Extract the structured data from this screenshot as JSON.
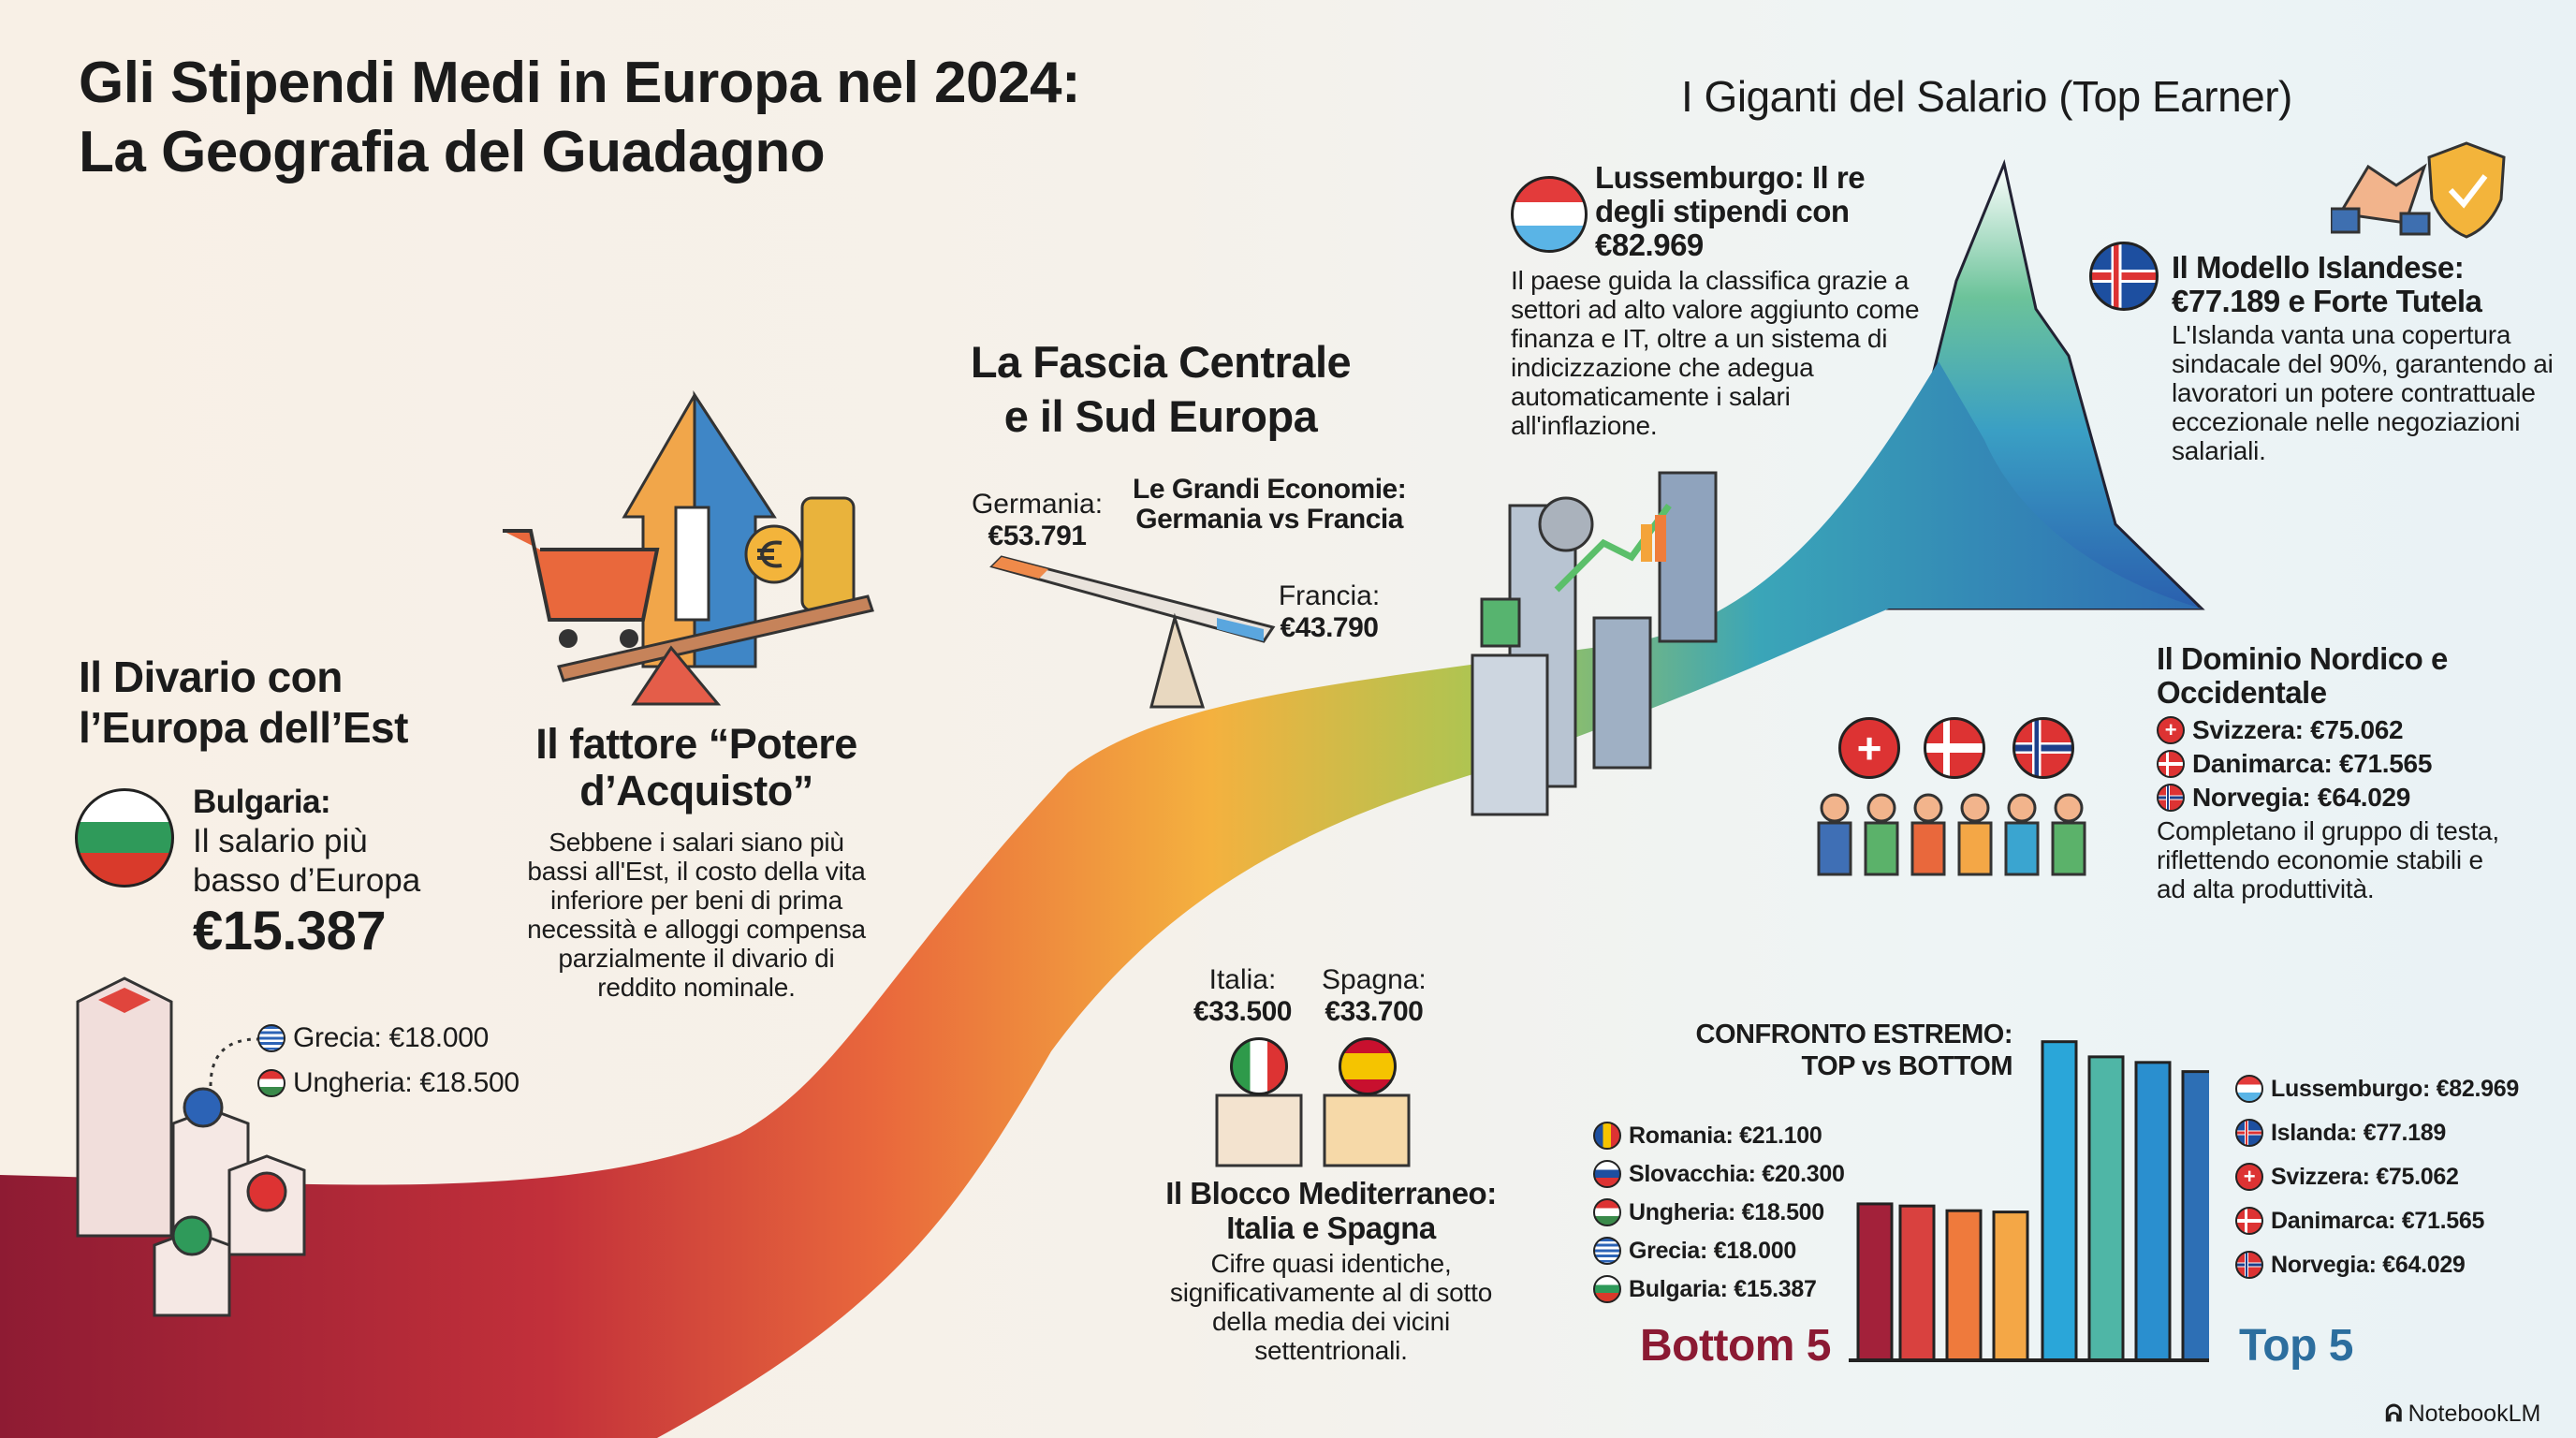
{
  "title": {
    "line1": "Gli Stipendi Medi in Europa nel 2024:",
    "line2": "La Geografia del Guadagno"
  },
  "giganti": {
    "heading": "I Giganti del Salario (Top Earner)"
  },
  "lussemburgo": {
    "heading": "Lussemburgo: Il re degli stipendi con €82.969",
    "body": "Il paese guida la classifica grazie a settori ad alto valore aggiunto come finanza e IT, oltre a un sistema di indicizzazione che adegua automaticamente i salari all'inflazione."
  },
  "islanda": {
    "heading_1": "Il Modello Islandese:",
    "heading_2": "€77.189 e Forte Tutela",
    "body": "L'Islanda vanta una copertura sindacale del 90%, garantendo ai lavoratori un potere contrattuale eccezionale nelle negoziazioni salariali."
  },
  "nordico": {
    "heading": "Il Dominio Nordico e Occidentale",
    "items": [
      {
        "label": "Svizzera: €75.062",
        "flag": "switzerland"
      },
      {
        "label": "Danimarca: €71.565",
        "flag": "denmark"
      },
      {
        "label": "Norvegia: €64.029",
        "flag": "norway"
      }
    ],
    "body": "Completano il gruppo di testa, riflettendo economie stabili e ad alta produttività."
  },
  "centrale": {
    "heading_1": "La Fascia Centrale",
    "heading_2": "e il Sud Europa",
    "germania_label": "Germania:",
    "germania_value": "€53.791",
    "francia_label": "Francia:",
    "francia_value": "€43.790",
    "economie_1": "Le Grandi Economie:",
    "economie_2": "Germania vs Francia"
  },
  "mediterraneo": {
    "italia_label": "Italia:",
    "italia_value": "€33.500",
    "spagna_label": "Spagna:",
    "spagna_value": "€33.700",
    "heading_1": "Il Blocco Mediterraneo:",
    "heading_2": "Italia e Spagna",
    "body": "Cifre quasi identiche, significativamente al di sotto della media dei vicini settentrionali."
  },
  "potere": {
    "heading_1": "Il fattore “Potere",
    "heading_2": "d’Acquisto”",
    "body": "Sebbene i salari siano più bassi all'Est, il costo della vita inferiore per beni di prima necessità e alloggi compensa parzialmente il divario di reddito nominale."
  },
  "divario": {
    "heading_1": "Il Divario con",
    "heading_2": "l’Europa dell’Est",
    "bulgaria_1": "Bulgaria:",
    "bulgaria_2": "Il salario più",
    "bulgaria_3": "basso d’Europa",
    "bulgaria_value": "€15.387",
    "grecia": "Grecia: €18.000",
    "ungheria": "Ungheria: €18.500"
  },
  "chart_data": {
    "type": "bar",
    "title": "CONFRONTO ESTREMO: TOP vs BOTTOM",
    "title_1": "CONFRONTO ESTREMO:",
    "title_2": "TOP vs BOTTOM",
    "bottom_label": "Bottom 5",
    "top_label": "Top 5",
    "bottom": [
      {
        "name": "Romania",
        "label": "Romania: €21.100",
        "value": 21100,
        "flag": "romania"
      },
      {
        "name": "Slovacchia",
        "label": "Slovacchia: €20.300",
        "value": 20300,
        "flag": "slovakia"
      },
      {
        "name": "Ungheria",
        "label": "Ungheria: €18.500",
        "value": 18500,
        "flag": "hungary"
      },
      {
        "name": "Grecia",
        "label": "Grecia: €18.000",
        "value": 18000,
        "flag": "greece"
      },
      {
        "name": "Bulgaria",
        "label": "Bulgaria: €15.387",
        "value": 15387,
        "flag": "bulgaria"
      }
    ],
    "top": [
      {
        "name": "Lussemburgo",
        "label": "Lussemburgo: €82.969",
        "value": 82969,
        "flag": "luxembourg"
      },
      {
        "name": "Islanda",
        "label": "Islanda: €77.189",
        "value": 77189,
        "flag": "iceland"
      },
      {
        "name": "Svizzera",
        "label": "Svizzera: €75.062",
        "value": 75062,
        "flag": "switzerland"
      },
      {
        "name": "Danimarca",
        "label": "Danimarca: €71.565",
        "value": 71565,
        "flag": "denmark"
      },
      {
        "name": "Norvegia",
        "label": "Norvegia: €64.029",
        "value": 64029,
        "flag": "norway"
      }
    ],
    "bottom_colors": [
      "#a3213a",
      "#d9413f",
      "#ef7a3c",
      "#f4a746"
    ],
    "top_colors": [
      "#2aa6d9",
      "#4fb6a6",
      "#2a8fcf",
      "#2d6fb5"
    ],
    "grid": false
  },
  "branding": {
    "label": "NotebookLM"
  }
}
